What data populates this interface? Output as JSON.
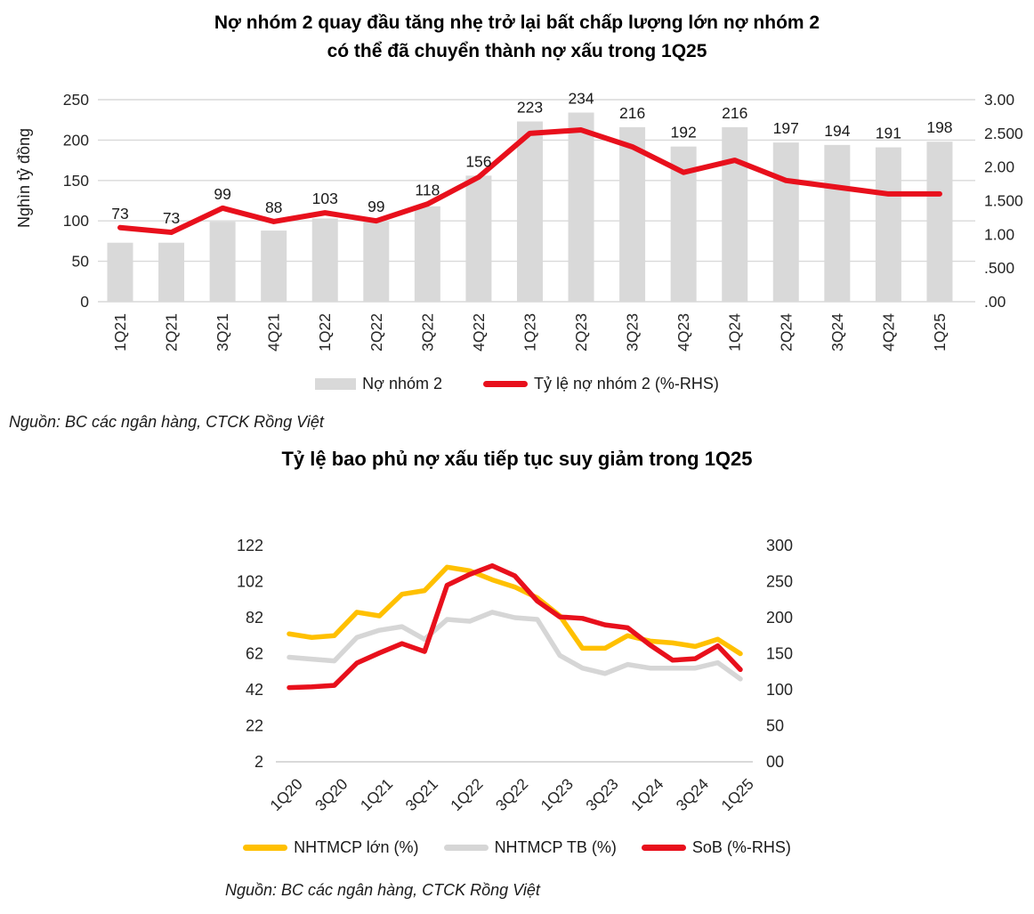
{
  "chart_data": [
    {
      "id": "group2-debt",
      "type": "bar+line",
      "title": "Nợ nhóm 2 quay đầu tăng nhẹ trở lại bất chấp lượng lớn nợ nhóm 2\ncó thể đã chuyển thành nợ xấu trong 1Q25",
      "ylabel_left": "Nghìn tỷ đồng",
      "source": "Nguồn: BC các ngân hàng, CTCK Rồng Việt",
      "categories": [
        "1Q21",
        "2Q21",
        "3Q21",
        "4Q21",
        "1Q22",
        "2Q22",
        "3Q22",
        "4Q22",
        "1Q23",
        "2Q23",
        "3Q23",
        "4Q23",
        "1Q24",
        "2Q24",
        "3Q24",
        "4Q24",
        "1Q25"
      ],
      "series": [
        {
          "name": "Nợ nhóm 2",
          "type": "bar",
          "axis": "left",
          "color": "#d9d9d9",
          "values": [
            73,
            73,
            99,
            88,
            103,
            99,
            118,
            156,
            223,
            234,
            216,
            192,
            216,
            197,
            194,
            191,
            198
          ]
        },
        {
          "name": "Tỷ lệ nợ nhóm 2 (%-RHS)",
          "type": "line",
          "axis": "right",
          "color": "#e8101c",
          "values": [
            1.1,
            1.03,
            1.39,
            1.19,
            1.32,
            1.2,
            1.45,
            1.85,
            2.5,
            2.55,
            2.3,
            1.92,
            2.1,
            1.8,
            1.7,
            1.6,
            1.6
          ]
        }
      ],
      "left_axis": {
        "min": 0,
        "max": 250,
        "tick_labels": [
          "0",
          "50",
          "100",
          "150",
          "200",
          "250"
        ],
        "grid": true
      },
      "right_axis": {
        "min": 0,
        "max": 3,
        "tick_labels": [
          ".00",
          ".500",
          "1.00",
          "1.500",
          "2.00",
          "2.500",
          "3.00"
        ],
        "grid": false
      },
      "data_labels": true
    },
    {
      "id": "npl-coverage",
      "type": "line",
      "title": "Tỷ lệ bao phủ nợ xấu tiếp tục suy giảm trong 1Q25",
      "source": "Nguồn: BC các ngân hàng, CTCK Rồng Việt",
      "categories": [
        "1Q20",
        "2Q20",
        "3Q20",
        "4Q20",
        "1Q21",
        "2Q21",
        "3Q21",
        "4Q21",
        "1Q22",
        "2Q22",
        "3Q22",
        "4Q22",
        "1Q23",
        "2Q23",
        "3Q23",
        "4Q23",
        "1Q24",
        "2Q24",
        "3Q24",
        "4Q24",
        "1Q25"
      ],
      "x_tick_labels": [
        "1Q20",
        "3Q20",
        "1Q21",
        "3Q21",
        "1Q22",
        "3Q22",
        "1Q23",
        "3Q23",
        "1Q24",
        "3Q24",
        "1Q25"
      ],
      "x_tick_every": 2,
      "series": [
        {
          "name": "NHTMCP lớn (%)",
          "type": "line",
          "axis": "left",
          "color": "#ffc000",
          "values": [
            73,
            71,
            72,
            85,
            83,
            95,
            97,
            110,
            108,
            103,
            99,
            93,
            83,
            65,
            65,
            72,
            69,
            68,
            66,
            70,
            62
          ]
        },
        {
          "name": "NHTMCP TB (%)",
          "type": "line",
          "axis": "left",
          "color": "#d6d6d6",
          "values": [
            60,
            59,
            58,
            71,
            75,
            77,
            70,
            81,
            80,
            85,
            82,
            81,
            61,
            54,
            51,
            56,
            54,
            54,
            54,
            57,
            48
          ]
        },
        {
          "name": "SoB (%-RHS)",
          "type": "line",
          "axis": "right",
          "color": "#e8101c",
          "values": [
            103,
            104,
            106,
            137,
            151,
            164,
            153,
            245,
            260,
            272,
            258,
            223,
            201,
            199,
            190,
            186,
            162,
            141,
            143,
            161,
            128
          ]
        }
      ],
      "left_axis": {
        "min": 2,
        "max": 122,
        "tick_labels": [
          "2",
          "22",
          "42",
          "62",
          "82",
          "102",
          "122"
        ],
        "grid": false
      },
      "right_axis": {
        "min": 0,
        "max": 300,
        "tick_labels": [
          "00",
          "50",
          "100",
          "150",
          "200",
          "250",
          "300"
        ],
        "grid": false
      },
      "data_labels": false
    }
  ]
}
